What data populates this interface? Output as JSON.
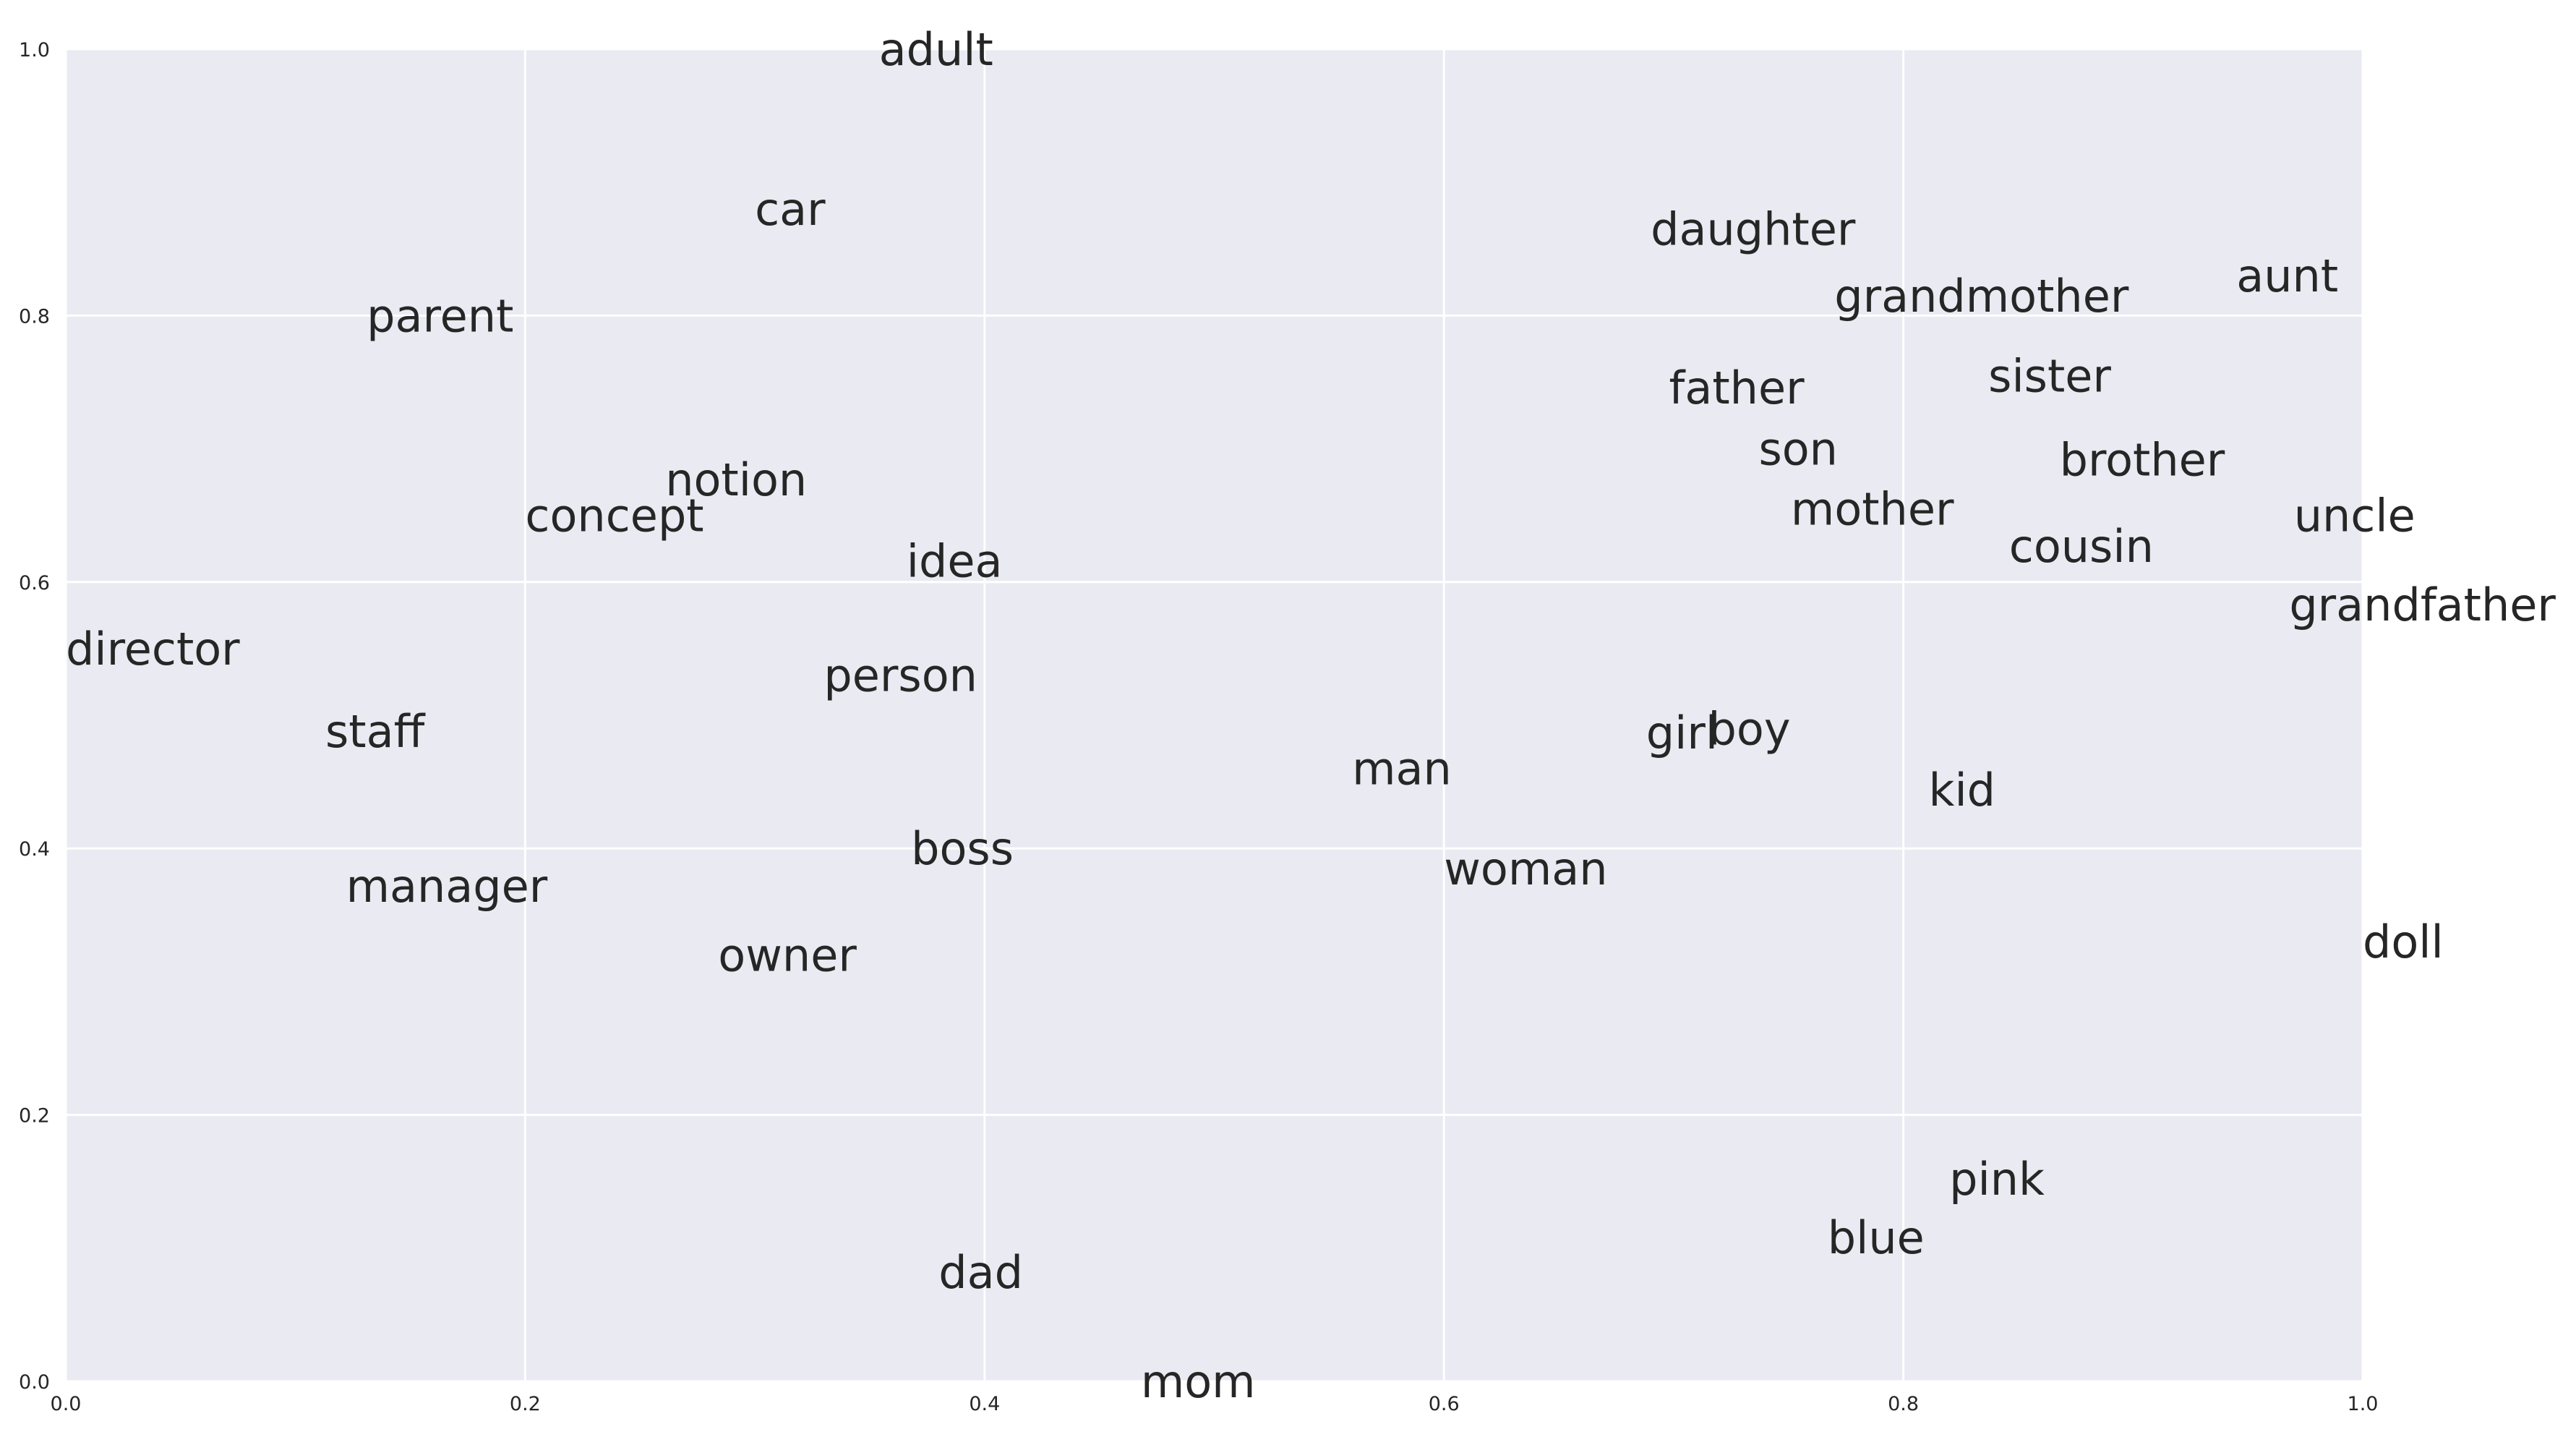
{
  "chart_data": {
    "type": "scatter",
    "title": "",
    "xlabel": "",
    "ylabel": "",
    "xlim": [
      0.0,
      1.0
    ],
    "ylim": [
      0.0,
      1.0
    ],
    "grid": true,
    "x_ticks": [
      "0.0",
      "0.2",
      "0.4",
      "0.6",
      "0.8",
      "1.0"
    ],
    "y_ticks": [
      "0.0",
      "0.2",
      "0.4",
      "0.6",
      "0.8",
      "1.0"
    ],
    "points": [
      {
        "label": "adult",
        "x": 0.354,
        "y": 1.0
      },
      {
        "label": "car",
        "x": 0.3,
        "y": 0.88
      },
      {
        "label": "parent",
        "x": 0.131,
        "y": 0.8
      },
      {
        "label": "notion",
        "x": 0.261,
        "y": 0.677
      },
      {
        "label": "concept",
        "x": 0.2,
        "y": 0.65
      },
      {
        "label": "idea",
        "x": 0.366,
        "y": 0.616
      },
      {
        "label": "director",
        "x": 0.0,
        "y": 0.55
      },
      {
        "label": "person",
        "x": 0.33,
        "y": 0.53
      },
      {
        "label": "staff",
        "x": 0.113,
        "y": 0.488
      },
      {
        "label": "manager",
        "x": 0.122,
        "y": 0.372
      },
      {
        "label": "boss",
        "x": 0.368,
        "y": 0.4
      },
      {
        "label": "owner",
        "x": 0.284,
        "y": 0.32
      },
      {
        "label": "dad",
        "x": 0.38,
        "y": 0.082
      },
      {
        "label": "mom",
        "x": 0.468,
        "y": 0.0
      },
      {
        "label": "man",
        "x": 0.56,
        "y": 0.46
      },
      {
        "label": "woman",
        "x": 0.6,
        "y": 0.385
      },
      {
        "label": "girl",
        "x": 0.688,
        "y": 0.487
      },
      {
        "label": "boy",
        "x": 0.715,
        "y": 0.49
      },
      {
        "label": "daughter",
        "x": 0.69,
        "y": 0.865
      },
      {
        "label": "grandmother",
        "x": 0.77,
        "y": 0.815
      },
      {
        "label": "father",
        "x": 0.698,
        "y": 0.746
      },
      {
        "label": "son",
        "x": 0.737,
        "y": 0.7
      },
      {
        "label": "mother",
        "x": 0.751,
        "y": 0.655
      },
      {
        "label": "sister",
        "x": 0.837,
        "y": 0.755
      },
      {
        "label": "brother",
        "x": 0.868,
        "y": 0.692
      },
      {
        "label": "cousin",
        "x": 0.846,
        "y": 0.627
      },
      {
        "label": "kid",
        "x": 0.811,
        "y": 0.444
      },
      {
        "label": "aunt",
        "x": 0.945,
        "y": 0.83
      },
      {
        "label": "uncle",
        "x": 0.97,
        "y": 0.65
      },
      {
        "label": "grandfather",
        "x": 0.968,
        "y": 0.583
      },
      {
        "label": "doll",
        "x": 1.0,
        "y": 0.33
      },
      {
        "label": "pink",
        "x": 0.82,
        "y": 0.152
      },
      {
        "label": "blue",
        "x": 0.767,
        "y": 0.108
      }
    ]
  },
  "colors": {
    "axes_bg": "#eaeaf2",
    "grid": "#ffffff",
    "text": "#262626",
    "page_bg": "#ffffff"
  }
}
